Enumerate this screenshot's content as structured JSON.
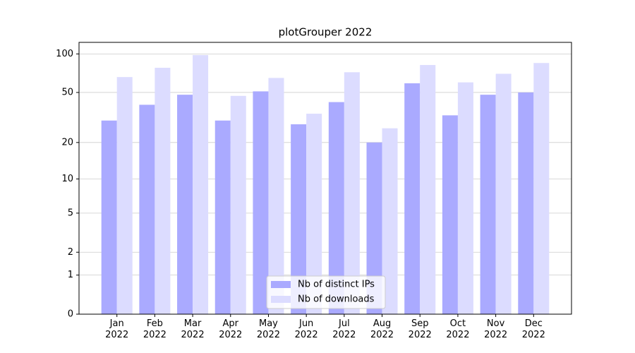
{
  "chart_data": {
    "type": "bar",
    "title": "plotGrouper 2022",
    "categories": [
      "Jan\n2022",
      "Feb\n2022",
      "Mar\n2022",
      "Apr\n2022",
      "May\n2022",
      "Jun\n2022",
      "Jul\n2022",
      "Aug\n2022",
      "Sep\n2022",
      "Oct\n2022",
      "Nov\n2022",
      "Dec\n2022"
    ],
    "series": [
      {
        "name": "Nb of distinct IPs",
        "color": "#aaaaff",
        "values": [
          30,
          40,
          48,
          30,
          51,
          28,
          42,
          20,
          59,
          33,
          48,
          50
        ]
      },
      {
        "name": "Nb of downloads",
        "color": "#dcdcff",
        "values": [
          66,
          78,
          98,
          47,
          65,
          34,
          72,
          26,
          82,
          60,
          70,
          85
        ]
      }
    ],
    "yscale": "log1p",
    "ylim": [
      0,
      123
    ],
    "yticks": [
      0,
      1,
      2,
      5,
      10,
      20,
      50,
      100
    ],
    "grid": true,
    "legend": "lower center"
  }
}
